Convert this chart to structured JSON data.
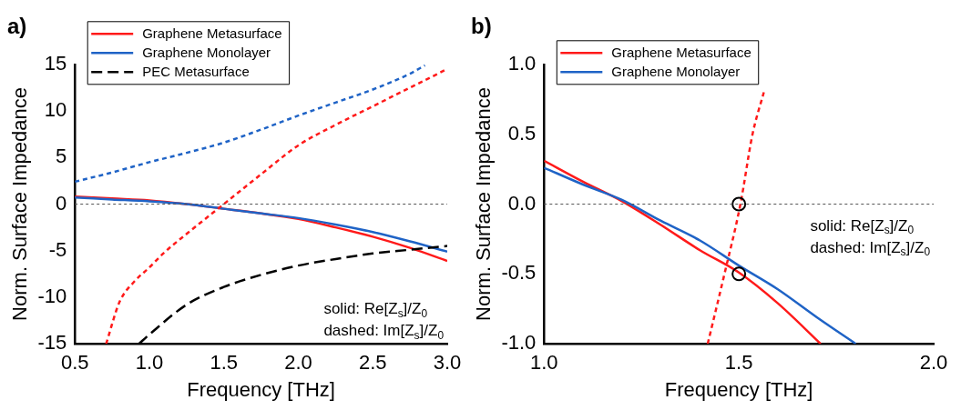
{
  "chart_data": [
    {
      "type": "line",
      "title": "a)",
      "xlabel": "Frequency [THz]",
      "ylabel": "Norm. Surface Impedance",
      "xlim": [
        0.5,
        3.0
      ],
      "xticks": [
        0.5,
        {
          "value": 1,
          "label": "1.0"
        },
        1.5,
        {
          "value": 2,
          "label": "2.0"
        },
        2.5,
        {
          "value": 3,
          "label": "3.0"
        }
      ],
      "ylim": [
        -15,
        15
      ],
      "yticks": [
        -15,
        -10,
        -5,
        0,
        5,
        10,
        15
      ],
      "grid": false,
      "legend": "top left",
      "marker": "none",
      "line_style": "solid",
      "ref_lines": [
        {
          "axis": "y",
          "value": 0,
          "color": "#555555",
          "line_style": "dashed"
        }
      ],
      "annotations": [
        "solid: Re[Z$_{s}$]/Z$_{0}$",
        "dashed: Im[Z$_{s}$]/Z$_{0}$"
      ],
      "series": [
        {
          "name": "Graphene Metasurface",
          "color": "#ff1a1a",
          "x": [
            0.5,
            0.75,
            1.0,
            1.25,
            1.5,
            1.75,
            2.0,
            2.25,
            2.5,
            2.75,
            3.0
          ],
          "values": [
            0.8,
            0.6,
            0.4,
            0.0,
            -0.5,
            -1.0,
            -1.6,
            -2.5,
            -3.5,
            -4.7,
            -6.1
          ]
        },
        {
          "name": "Graphene Monolayer",
          "color": "#1f63c6",
          "x": [
            0.5,
            0.75,
            1.0,
            1.25,
            1.5,
            1.75,
            2.0,
            2.25,
            2.5,
            2.75,
            3.0
          ],
          "values": [
            0.7,
            0.5,
            0.3,
            0.0,
            -0.5,
            -1.0,
            -1.5,
            -2.2,
            -3.0,
            -4.0,
            -5.1
          ]
        },
        {
          "name": "PEC Metasurface",
          "color": "#000000",
          "line_style": "dashed",
          "x": [
            0.93,
            1.0,
            1.25,
            1.5,
            1.75,
            2.0,
            2.25,
            2.5,
            2.75,
            3.0
          ],
          "values": [
            -15,
            -14,
            -10.8,
            -8.9,
            -7.6,
            -6.6,
            -5.9,
            -5.3,
            -4.9,
            -4.5
          ]
        },
        {
          "color": "#ff1a1a",
          "line_style": "dotted",
          "x": [
            0.71,
            0.8,
            0.9,
            1.0,
            1.1,
            1.25,
            1.5,
            1.75,
            2.0,
            2.25,
            2.5,
            2.75,
            3.0
          ],
          "values": [
            -15,
            -10.5,
            -8.3,
            -6.8,
            -5.2,
            -3.2,
            0.0,
            3.2,
            6.3,
            8.5,
            10.5,
            12.5,
            14.5
          ]
        },
        {
          "color": "#1f63c6",
          "line_style": "dotted",
          "x": [
            0.5,
            0.75,
            1.0,
            1.25,
            1.5,
            1.75,
            2.0,
            2.25,
            2.5,
            2.75,
            2.85
          ],
          "values": [
            2.4,
            3.4,
            4.5,
            5.5,
            6.6,
            8.0,
            9.5,
            10.9,
            12.3,
            14.0,
            14.9
          ]
        }
      ]
    },
    {
      "type": "line",
      "title": "b)",
      "xlabel": "Frequency [THz]",
      "ylabel": "Norm. Surface Impedance",
      "xlim": [
        1.0,
        2.0
      ],
      "xticks": [
        {
          "value": 1,
          "label": "1.0"
        },
        1.5,
        {
          "value": 2,
          "label": "2.0"
        }
      ],
      "ylim": [
        -1.0,
        1.0
      ],
      "yticks": [
        {
          "value": -1,
          "label": "-1.0"
        },
        -0.5,
        {
          "value": 0,
          "label": "0.0"
        },
        0.5,
        {
          "value": 1,
          "label": "1.0"
        }
      ],
      "grid": false,
      "legend": "top left",
      "marker": "none",
      "line_style": "solid",
      "ref_lines": [
        {
          "axis": "y",
          "value": 0,
          "color": "#555555",
          "line_style": "dashed"
        }
      ],
      "annotations": [
        "solid: Re[Z$_{s}$]/Z$_{0}$",
        "dashed: Im[Z$_{s}$]/Z$_{0}$"
      ],
      "series": [
        {
          "name": "Graphene Metasurface",
          "color": "#ff1a1a",
          "x": [
            1.0,
            1.1,
            1.2,
            1.3,
            1.4,
            1.5,
            1.6,
            1.71
          ],
          "values": [
            0.31,
            0.16,
            0.02,
            -0.15,
            -0.33,
            -0.49,
            -0.71,
            -1.0
          ]
        },
        {
          "name": "Graphene Monolayer",
          "color": "#1f63c6",
          "x": [
            1.0,
            1.1,
            1.2,
            1.3,
            1.4,
            1.5,
            1.6,
            1.7,
            1.8
          ],
          "values": [
            0.26,
            0.14,
            0.03,
            -0.12,
            -0.26,
            -0.44,
            -0.61,
            -0.81,
            -1.0
          ]
        },
        {
          "color": "#ff1a1a",
          "line_style": "dotted",
          "x": [
            1.42,
            1.463,
            1.504,
            1.535,
            1.564
          ],
          "values": [
            -1.0,
            -0.5,
            0.0,
            0.5,
            0.8
          ]
        },
        {
          "type": "scatter",
          "color": "#000000",
          "marker": "circle",
          "x": [
            1.5,
            1.5
          ],
          "values": [
            0,
            -0.5
          ]
        }
      ]
    }
  ]
}
